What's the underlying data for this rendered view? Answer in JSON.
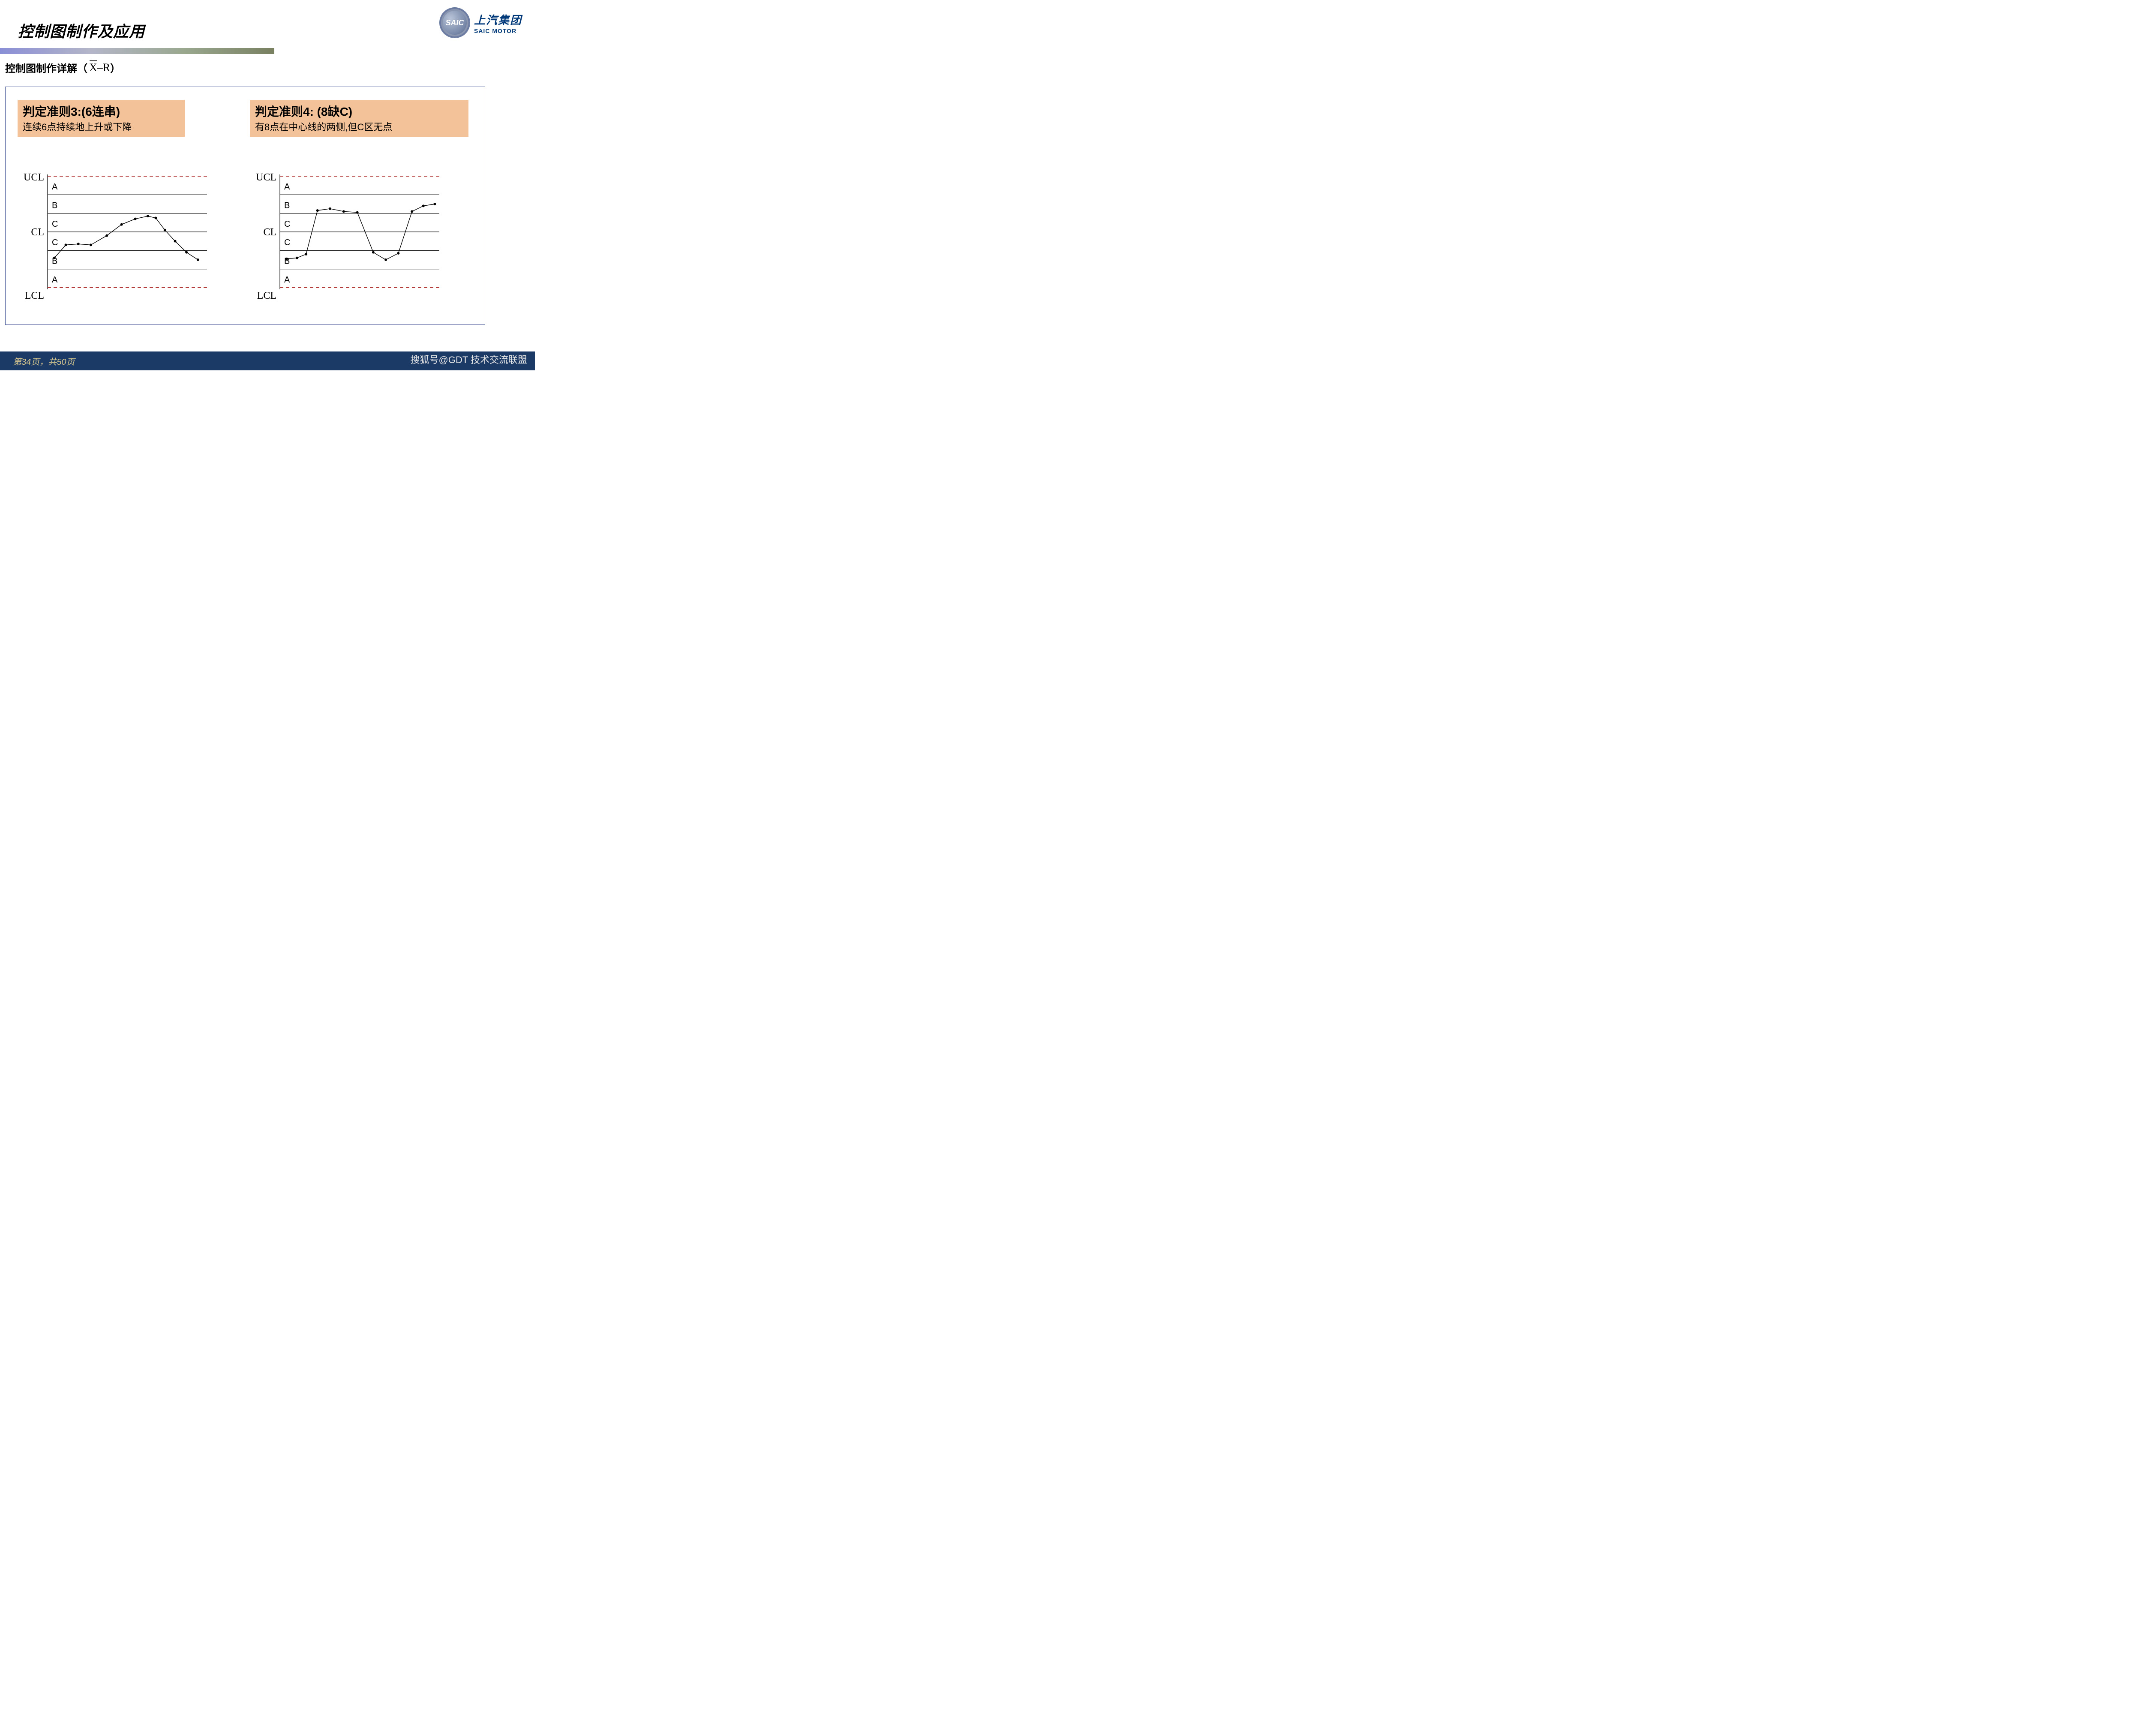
{
  "page": {
    "title": "控制图制作及应用",
    "subtitle_prefix": "控制图制作详解（",
    "subtitle_suffix": "）",
    "footer": "第34页，共50页",
    "watermark": "搜狐号@GDT 技术交流联盟"
  },
  "logo": {
    "badge_text": "SAIC",
    "cn": "上汽集团",
    "en": "SAIC MOTOR"
  },
  "colors": {
    "rule_box_bg": "#f4c298",
    "content_border": "#4a5a9a",
    "footer_bg": "#1c3a66",
    "footer_text": "#d8c890",
    "ucl_lcl_line": "#aa2020",
    "zone_line": "#000000",
    "data_line": "#000000",
    "marker_fill": "#000000"
  },
  "rules": {
    "left": {
      "title": "判定准则3:(6连串)",
      "desc": "连续6点持续地上升或下降"
    },
    "right": {
      "title": "判定准则4: (8缺C)",
      "desc": "有8点在中心线的两侧,但C区无点"
    }
  },
  "chart_common": {
    "type": "line",
    "axis_labels": {
      "ucl": "UCL",
      "cl": "CL",
      "lcl": "LCL"
    },
    "zone_labels_top_to_bottom": [
      "A",
      "B",
      "C",
      "C",
      "B",
      "A"
    ],
    "y_zones": [
      0,
      1,
      2,
      3,
      4,
      5,
      6
    ],
    "x_range": [
      0,
      14
    ],
    "ucl_lcl_dash": "8,6",
    "line_width": 1.4,
    "zone_line_width": 1.2,
    "marker_radius": 3
  },
  "chart_left": {
    "points": [
      {
        "x": 0.6,
        "y": 1.6
      },
      {
        "x": 1.6,
        "y": 2.3
      },
      {
        "x": 2.7,
        "y": 2.35
      },
      {
        "x": 3.8,
        "y": 2.3
      },
      {
        "x": 5.2,
        "y": 2.8
      },
      {
        "x": 6.5,
        "y": 3.4
      },
      {
        "x": 7.7,
        "y": 3.7
      },
      {
        "x": 8.8,
        "y": 3.85
      },
      {
        "x": 9.5,
        "y": 3.75
      },
      {
        "x": 10.3,
        "y": 3.1
      },
      {
        "x": 11.2,
        "y": 2.5
      },
      {
        "x": 12.2,
        "y": 1.9
      },
      {
        "x": 13.2,
        "y": 1.5
      }
    ]
  },
  "chart_right": {
    "points": [
      {
        "x": 0.6,
        "y": 1.55
      },
      {
        "x": 1.5,
        "y": 1.6
      },
      {
        "x": 2.3,
        "y": 1.8
      },
      {
        "x": 3.3,
        "y": 4.15
      },
      {
        "x": 4.4,
        "y": 4.25
      },
      {
        "x": 5.6,
        "y": 4.1
      },
      {
        "x": 6.8,
        "y": 4.05
      },
      {
        "x": 8.2,
        "y": 1.9
      },
      {
        "x": 9.3,
        "y": 1.5
      },
      {
        "x": 10.4,
        "y": 1.85
      },
      {
        "x": 11.6,
        "y": 4.1
      },
      {
        "x": 12.6,
        "y": 4.4
      },
      {
        "x": 13.6,
        "y": 4.5
      }
    ]
  }
}
